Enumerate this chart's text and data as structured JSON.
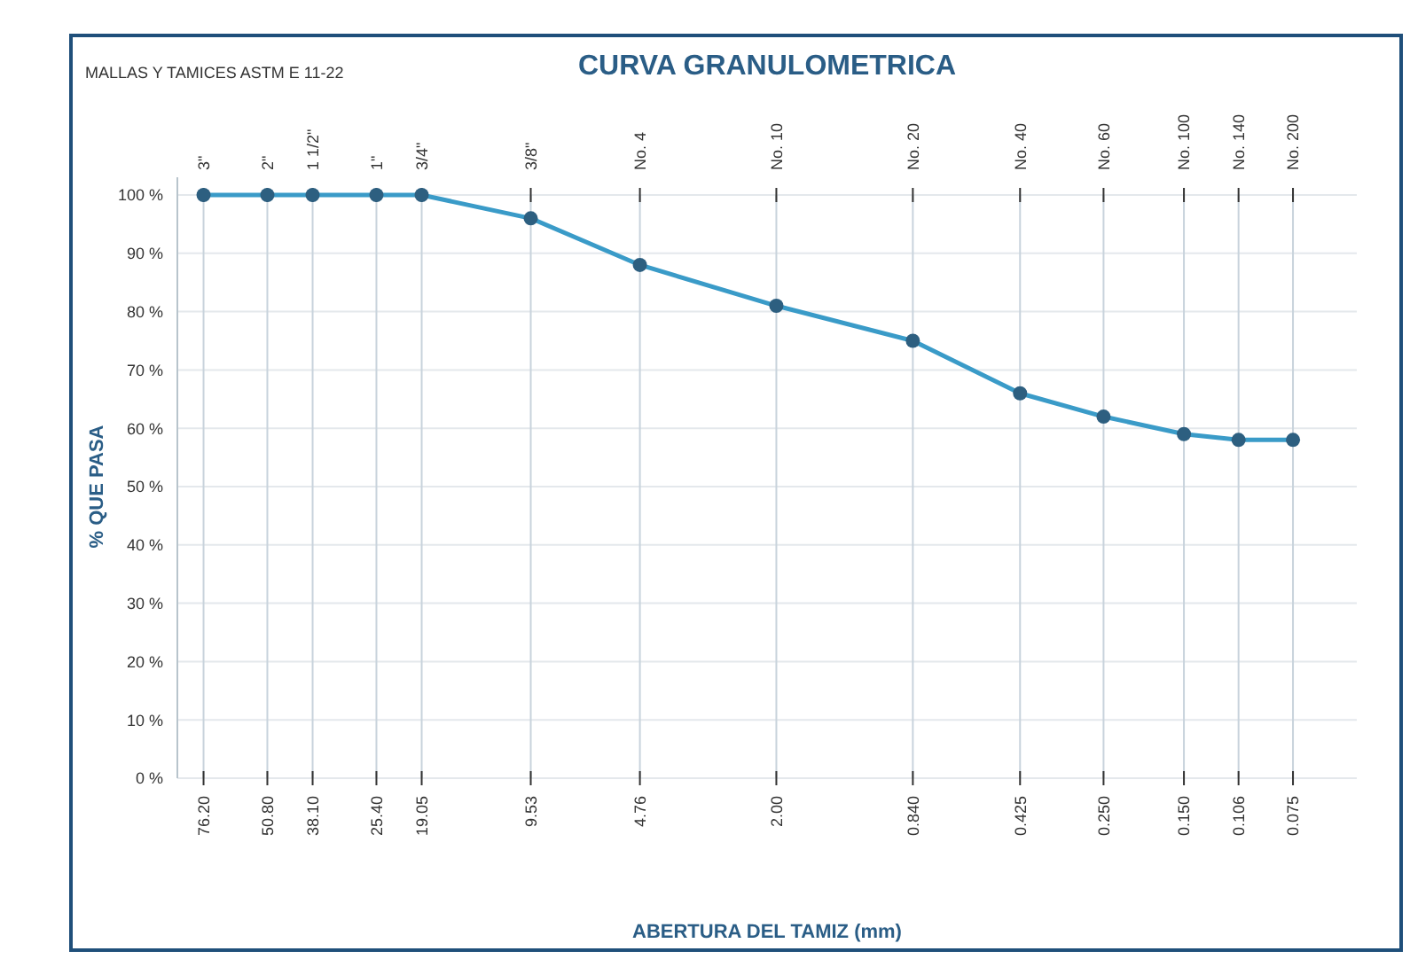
{
  "chart_data": {
    "type": "line",
    "title": "CURVA GRANULOMETRICA",
    "subtitle": "MALLAS Y TAMICES ASTM E 11-22",
    "xlabel": "ABERTURA DEL TAMIZ (mm)",
    "ylabel": "% QUE PASA",
    "x": [
      76.2,
      50.8,
      38.1,
      25.4,
      19.05,
      9.525,
      4.76,
      2.0,
      0.84,
      0.425,
      0.25,
      0.15,
      0.106,
      0.075
    ],
    "series": [
      {
        "color": "#3a9bc8",
        "values": [
          100,
          100,
          100,
          100,
          100,
          96,
          88,
          81,
          75,
          66,
          62,
          59,
          58,
          58
        ]
      }
    ],
    "xlim": [
      90,
      0.05
    ],
    "log": "x",
    "ylim": [
      0,
      100
    ],
    "xticks": [
      {
        "value": 76.2,
        "label": "76.20"
      },
      {
        "value": 50.8,
        "label": "50.80"
      },
      {
        "value": 38.1,
        "label": "38.10"
      },
      {
        "value": 25.4,
        "label": "25.40"
      },
      {
        "value": 19.05,
        "label": "19.05"
      },
      {
        "value": 9.525,
        "label": "9.53"
      },
      {
        "value": 4.76,
        "label": "4.76"
      },
      {
        "value": 2.0,
        "label": "2.00"
      },
      {
        "value": 0.84,
        "label": "0.840"
      },
      {
        "value": 0.425,
        "label": "0.425"
      },
      {
        "value": 0.25,
        "label": "0.250"
      },
      {
        "value": 0.15,
        "label": "0.150"
      },
      {
        "value": 0.106,
        "label": "0.106"
      },
      {
        "value": 0.075,
        "label": "0.075"
      }
    ],
    "annotations": [
      "3\"",
      "2\"",
      "1 1/2\"",
      "1\"",
      "3/4\"",
      "3/8\"",
      "No. 4",
      "No. 10",
      "No. 20",
      "No. 40",
      "No. 60",
      "No. 100",
      "No. 140",
      "No. 200"
    ],
    "yticks": [
      {
        "value": 0,
        "label": "0 %"
      },
      {
        "value": 10,
        "label": "10 %"
      },
      {
        "value": 20,
        "label": "20 %"
      },
      {
        "value": 30,
        "label": "30 %"
      },
      {
        "value": 40,
        "label": "40 %"
      },
      {
        "value": 50,
        "label": "50 %"
      },
      {
        "value": 60,
        "label": "60 %"
      },
      {
        "value": 70,
        "label": "70 %"
      },
      {
        "value": 80,
        "label": "80 %"
      },
      {
        "value": 90,
        "label": "90 %"
      },
      {
        "value": 100,
        "label": "100 %"
      }
    ],
    "grid": true,
    "marker": "circle",
    "line_style": "solid"
  }
}
